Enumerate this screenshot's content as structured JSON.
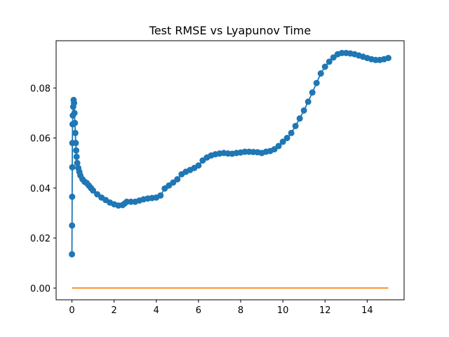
{
  "chart_data": {
    "type": "line",
    "title": "Test RMSE vs Lyapunov Time",
    "xlabel": "",
    "ylabel": "",
    "xlim": [
      -0.75,
      15.75
    ],
    "ylim": [
      -0.0047,
      0.0989
    ],
    "grid": false,
    "legend": "none",
    "x_ticks": [
      0,
      2,
      4,
      6,
      8,
      10,
      12,
      14
    ],
    "y_ticks": [
      0.0,
      0.02,
      0.04,
      0.06,
      0.08
    ],
    "x_tick_labels": [
      "0",
      "2",
      "4",
      "6",
      "8",
      "10",
      "12",
      "14"
    ],
    "y_tick_labels": [
      "0.00",
      "0.02",
      "0.04",
      "0.06",
      "0.08"
    ],
    "series": [
      {
        "color": "#1f77b4",
        "marker": "circle",
        "x": [
          0.0,
          0.005,
          0.01,
          0.015,
          0.02,
          0.03,
          0.04,
          0.06,
          0.08,
          0.1,
          0.12,
          0.14,
          0.16,
          0.18,
          0.2,
          0.22,
          0.25,
          0.3,
          0.35,
          0.4,
          0.5,
          0.6,
          0.7,
          0.8,
          0.9,
          1.0,
          1.2,
          1.4,
          1.6,
          1.8,
          2.0,
          2.2,
          2.4,
          2.5,
          2.6,
          2.8,
          3.0,
          3.2,
          3.4,
          3.6,
          3.8,
          4.0,
          4.2,
          4.4,
          4.6,
          4.8,
          5.0,
          5.2,
          5.4,
          5.6,
          5.8,
          6.0,
          6.2,
          6.4,
          6.6,
          6.8,
          7.0,
          7.2,
          7.4,
          7.6,
          7.8,
          8.0,
          8.2,
          8.4,
          8.6,
          8.8,
          9.0,
          9.2,
          9.4,
          9.6,
          9.8,
          10.0,
          10.2,
          10.4,
          10.6,
          10.8,
          11.0,
          11.2,
          11.4,
          11.6,
          11.8,
          12.0,
          12.2,
          12.4,
          12.6,
          12.8,
          13.0,
          13.2,
          13.4,
          13.6,
          13.8,
          14.0,
          14.2,
          14.4,
          14.6,
          14.8,
          15.0
        ],
        "values": [
          0.0135,
          0.025,
          0.0365,
          0.0483,
          0.058,
          0.0655,
          0.069,
          0.0725,
          0.0752,
          0.074,
          0.07,
          0.066,
          0.062,
          0.058,
          0.055,
          0.0525,
          0.05,
          0.048,
          0.0465,
          0.045,
          0.0435,
          0.0425,
          0.042,
          0.041,
          0.04,
          0.039,
          0.0375,
          0.0362,
          0.0352,
          0.0342,
          0.0335,
          0.033,
          0.0332,
          0.0338,
          0.0345,
          0.0345,
          0.0345,
          0.035,
          0.0355,
          0.0358,
          0.036,
          0.0362,
          0.037,
          0.0398,
          0.041,
          0.0422,
          0.0435,
          0.0455,
          0.0465,
          0.0472,
          0.048,
          0.049,
          0.051,
          0.0522,
          0.053,
          0.0535,
          0.0538,
          0.054,
          0.0538,
          0.0537,
          0.054,
          0.0542,
          0.0545,
          0.0545,
          0.0544,
          0.0543,
          0.054,
          0.0545,
          0.0548,
          0.0555,
          0.0568,
          0.0585,
          0.06,
          0.062,
          0.0648,
          0.0678,
          0.071,
          0.0745,
          0.0782,
          0.082,
          0.0858,
          0.0885,
          0.0905,
          0.0922,
          0.0935,
          0.094,
          0.094,
          0.0938,
          0.0935,
          0.093,
          0.0925,
          0.092,
          0.0915,
          0.0912,
          0.0912,
          0.0915,
          0.092
        ]
      },
      {
        "color": "#ff7f0e",
        "marker": "none",
        "x": [
          0.0,
          15.0
        ],
        "values": [
          0.0,
          0.0
        ]
      }
    ]
  }
}
